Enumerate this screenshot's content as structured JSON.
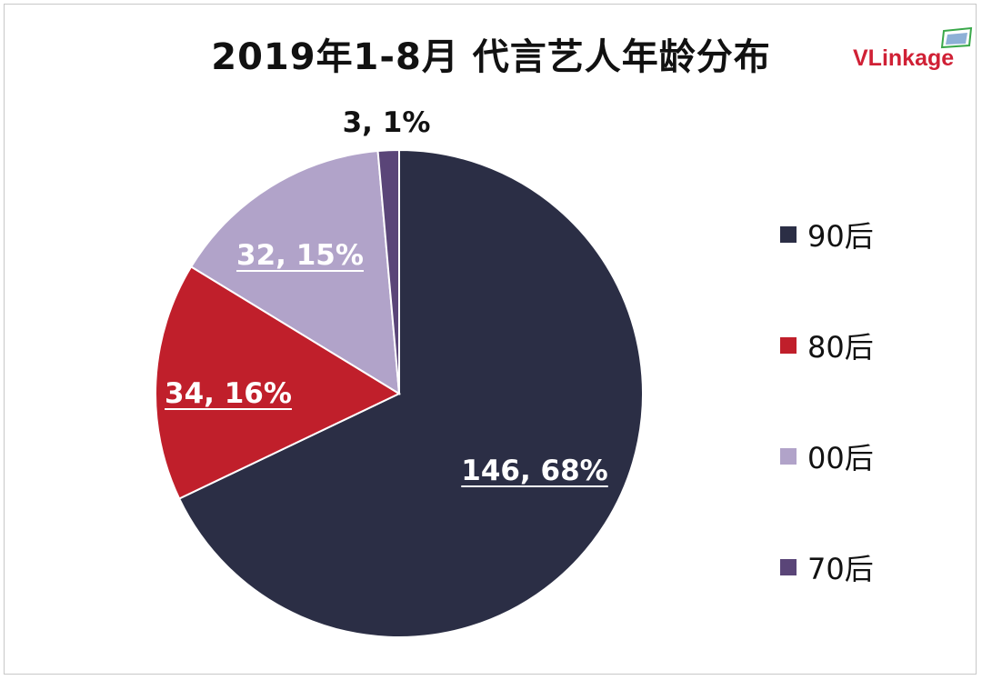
{
  "title": "2019年1-8月 代言艺人年龄分布",
  "logo": {
    "text": "VLinkage",
    "colors": {
      "brand": "#d02035",
      "mark_green": "#3aa84a",
      "mark_blue": "#2f6fb5"
    }
  },
  "chart_data": {
    "type": "pie",
    "title": "2019年1-8月 代言艺人年龄分布",
    "legend_position": "right",
    "slices": [
      {
        "name": "90后",
        "value": 146,
        "percent": "68%",
        "label": "146, 68%",
        "color": "#2b2e45",
        "label_color": "#ffffff",
        "label_underline": true
      },
      {
        "name": "80后",
        "value": 34,
        "percent": "16%",
        "label": "34, 16%",
        "color": "#c01f2b",
        "label_color": "#ffffff",
        "label_underline": true
      },
      {
        "name": "00后",
        "value": 32,
        "percent": "15%",
        "label": "32, 15%",
        "color": "#b1a3c9",
        "label_color": "#ffffff",
        "label_underline": true
      },
      {
        "name": "70后",
        "value": 3,
        "percent": "1%",
        "label": "3, 1%",
        "color": "#5a4578",
        "label_color": "#111111",
        "label_underline": false
      }
    ],
    "legend_order": [
      "90后",
      "80后",
      "00后",
      "70后"
    ]
  }
}
